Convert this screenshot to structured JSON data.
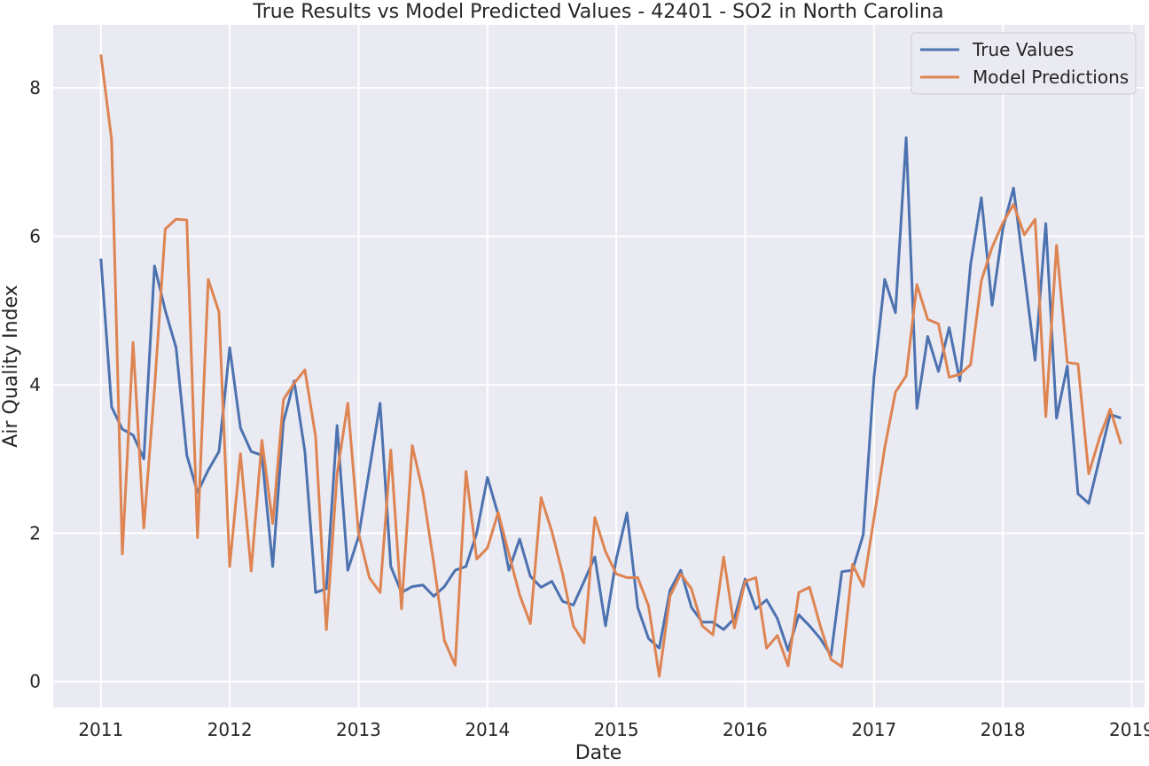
{
  "chart_data": {
    "type": "line",
    "title": "True Results vs Model Predicted Values - 42401 - SO2 in North Carolina",
    "xlabel": "Date",
    "ylabel": "Air Quality Index",
    "x_start": "2011-01",
    "x_ticks": [
      "2011",
      "2012",
      "2013",
      "2014",
      "2015",
      "2016",
      "2017",
      "2018",
      "2019"
    ],
    "y_ticks": [
      "0",
      "2",
      "4",
      "6",
      "8"
    ],
    "xlim": [
      2010.63,
      2019.1
    ],
    "ylim": [
      -0.35,
      8.85
    ],
    "grid": true,
    "legend_position": "top-right",
    "series": [
      {
        "name": "True Values",
        "color": "#4c72b0",
        "values": [
          5.7,
          3.7,
          3.4,
          3.32,
          3.0,
          5.6,
          5.0,
          4.5,
          3.05,
          2.55,
          2.85,
          3.1,
          4.5,
          3.42,
          3.1,
          3.05,
          1.55,
          3.5,
          4.05,
          3.1,
          1.2,
          1.25,
          3.45,
          1.5,
          1.95,
          2.85,
          3.75,
          1.55,
          1.2,
          1.28,
          1.3,
          1.15,
          1.28,
          1.5,
          1.55,
          2.0,
          2.75,
          2.25,
          1.5,
          1.92,
          1.42,
          1.27,
          1.35,
          1.08,
          1.03,
          1.35,
          1.68,
          0.75,
          1.65,
          2.27,
          1.0,
          0.58,
          0.45,
          1.23,
          1.5,
          1.0,
          0.8,
          0.8,
          0.7,
          0.85,
          1.38,
          0.98,
          1.1,
          0.85,
          0.42,
          0.9,
          0.75,
          0.58,
          0.35,
          1.48,
          1.5,
          1.98,
          4.1,
          5.42,
          4.97,
          7.33,
          3.68,
          4.65,
          4.18,
          4.77,
          4.05,
          5.62,
          6.52,
          5.07,
          6.1,
          6.65,
          5.5,
          4.33,
          6.17,
          3.55,
          4.25,
          2.53,
          2.4,
          3.0,
          3.6,
          3.55
        ]
      },
      {
        "name": "Model Predictions",
        "color": "#dd8452",
        "values": [
          8.45,
          7.3,
          1.72,
          4.57,
          2.07,
          3.95,
          6.1,
          6.23,
          6.22,
          1.94,
          5.42,
          4.98,
          1.55,
          3.07,
          1.49,
          3.25,
          2.13,
          3.8,
          4.02,
          4.2,
          3.3,
          0.7,
          2.8,
          3.75,
          2.0,
          1.4,
          1.2,
          3.12,
          0.98,
          3.18,
          2.55,
          1.6,
          0.55,
          0.22,
          2.83,
          1.65,
          1.8,
          2.28,
          1.72,
          1.17,
          0.78,
          2.48,
          2.02,
          1.45,
          0.75,
          0.52,
          2.21,
          1.75,
          1.45,
          1.4,
          1.4,
          1.02,
          0.07,
          1.15,
          1.45,
          1.25,
          0.75,
          0.63,
          1.68,
          0.72,
          1.35,
          1.4,
          0.45,
          0.62,
          0.21,
          1.2,
          1.27,
          0.75,
          0.3,
          0.2,
          1.58,
          1.28,
          2.2,
          3.15,
          3.9,
          4.12,
          5.35,
          4.88,
          4.82,
          4.1,
          4.14,
          4.27,
          5.4,
          5.85,
          6.18,
          6.43,
          6.02,
          6.23,
          3.57,
          5.88,
          4.3,
          4.28,
          2.8,
          3.28,
          3.67,
          3.2
        ]
      }
    ]
  }
}
